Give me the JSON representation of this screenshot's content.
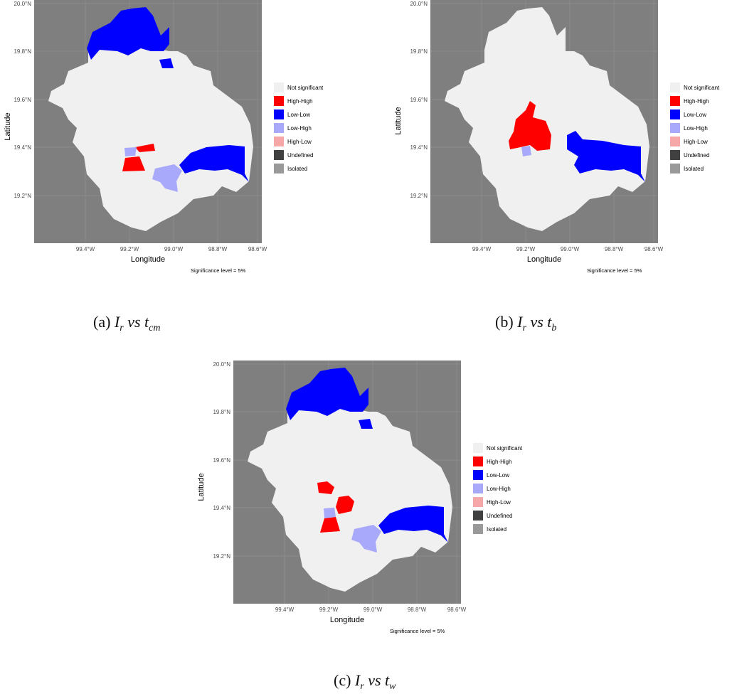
{
  "panels": [
    {
      "id": "a",
      "caption": {
        "label": "(a)",
        "var": "I",
        "var_sub": "r",
        "vs": "vs",
        "target": "t",
        "target_sub": "cm"
      },
      "y_axis": {
        "title": "Latitude",
        "ticks": [
          "20.0°N",
          "19.8°N",
          "19.6°N",
          "19.4°N",
          "19.2°N"
        ]
      },
      "x_axis": {
        "title": "Longitude",
        "ticks": [
          "99.4°W",
          "99.2°W",
          "99.0°W",
          "98.8°W",
          "98.6°W"
        ]
      },
      "legend": [
        "Not significant",
        "High-High",
        "Low-Low",
        "Low-High",
        "High-Low",
        "Undefined",
        "Isolated"
      ],
      "note": "Significance level = 5%",
      "clusters": [
        "Low-Low (north)",
        "High-High (west-central, 2 units)",
        "Low-High (2 units)",
        "Low-Low (east)"
      ]
    },
    {
      "id": "b",
      "caption": {
        "label": "(b)",
        "var": "I",
        "var_sub": "r",
        "vs": "vs",
        "target": "t",
        "target_sub": "b"
      },
      "y_axis": {
        "title": "Latitude",
        "ticks": [
          "20.0°N",
          "19.8°N",
          "19.6°N",
          "19.4°N",
          "19.2°N"
        ]
      },
      "x_axis": {
        "title": "Longitude",
        "ticks": [
          "99.4°W",
          "99.2°W",
          "99.0°W",
          "98.8°W",
          "98.6°W"
        ]
      },
      "legend": [
        "Not significant",
        "High-High",
        "Low-Low",
        "Low-High",
        "High-Low",
        "Undefined",
        "Isolated"
      ],
      "note": "Significance level = 5%",
      "clusters": [
        "High-High (central)",
        "Low-High (1 unit)",
        "Low-Low (east)"
      ]
    },
    {
      "id": "c",
      "caption": {
        "label": "(c)",
        "var": "I",
        "var_sub": "r",
        "vs": "vs",
        "target": "t",
        "target_sub": "w"
      },
      "y_axis": {
        "title": "Latitude",
        "ticks": [
          "20.0°N",
          "19.8°N",
          "19.6°N",
          "19.4°N",
          "19.2°N"
        ]
      },
      "x_axis": {
        "title": "Longitude",
        "ticks": [
          "99.4°W",
          "99.2°W",
          "99.0°W",
          "98.8°W",
          "98.6°W"
        ]
      },
      "legend": [
        "Not significant",
        "High-High",
        "Low-Low",
        "Low-High",
        "High-Low",
        "Undefined",
        "Isolated"
      ],
      "note": "Significance level = 5%",
      "clusters": [
        "Low-Low (north)",
        "High-High (3 units)",
        "Low-High (2 units)",
        "Low-Low (east)"
      ]
    }
  ],
  "colors": {
    "panel_bg": "#7f7f7f",
    "grid": "#8f8f8f",
    "not_significant": "#f0f0f0",
    "high_high": "#ff0000",
    "low_low": "#0000ff",
    "low_high": "#a9a9fb",
    "high_low": "#f6a8a8",
    "undefined": "#404040",
    "isolated": "#999999"
  }
}
